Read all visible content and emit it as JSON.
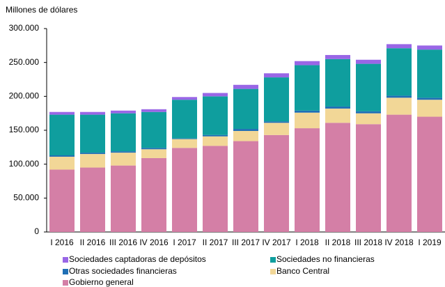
{
  "chart_data": {
    "type": "stacked-bar",
    "y_label": "Millones de dólares",
    "categories": [
      "I 2016",
      "II 2016",
      "III 2016",
      "IV 2016",
      "I 2017",
      "II 2017",
      "III 2017",
      "IV 2017",
      "I 2018",
      "II 2018",
      "III 2018",
      "IV 2018",
      "I 2019"
    ],
    "series": [
      {
        "name": "Gobierno general",
        "color": "#d47fa6",
        "values": [
          92000,
          95000,
          98000,
          109000,
          124000,
          127000,
          134000,
          143000,
          153000,
          161000,
          159000,
          173000,
          170000
        ]
      },
      {
        "name": "Banco Central",
        "color": "#f2d797",
        "values": [
          19000,
          20000,
          19000,
          13000,
          13000,
          14000,
          15000,
          18000,
          23000,
          21000,
          16000,
          25000,
          25000
        ]
      },
      {
        "name": "Otras sociedades financieras",
        "color": "#1f6fb5",
        "values": [
          2000,
          2000,
          2000,
          2000,
          1000,
          2000,
          3000,
          2000,
          3000,
          3000,
          3000,
          3000,
          3000
        ]
      },
      {
        "name": "Sociedades no financieras",
        "color": "#0f9e9e",
        "values": [
          60000,
          56000,
          56000,
          53000,
          57000,
          57000,
          59000,
          65000,
          67000,
          70000,
          70000,
          70000,
          71000
        ]
      },
      {
        "name": "Sociedades captadoras de depósitos",
        "color": "#9966e6",
        "values": [
          4000,
          4000,
          4000,
          4000,
          4000,
          5000,
          6000,
          6000,
          6000,
          6000,
          6000,
          6000,
          6000
        ]
      }
    ],
    "ylim": [
      0,
      300000
    ],
    "yticks": [
      0,
      {
        "value": 50000,
        "label": "50.000"
      },
      {
        "value": 100000,
        "label": "100.000"
      },
      {
        "value": 150000,
        "label": "150.000"
      },
      {
        "value": 200000,
        "label": "200.000"
      },
      {
        "value": 250000,
        "label": "250.000"
      },
      {
        "value": 300000,
        "label": "300.000"
      }
    ]
  }
}
